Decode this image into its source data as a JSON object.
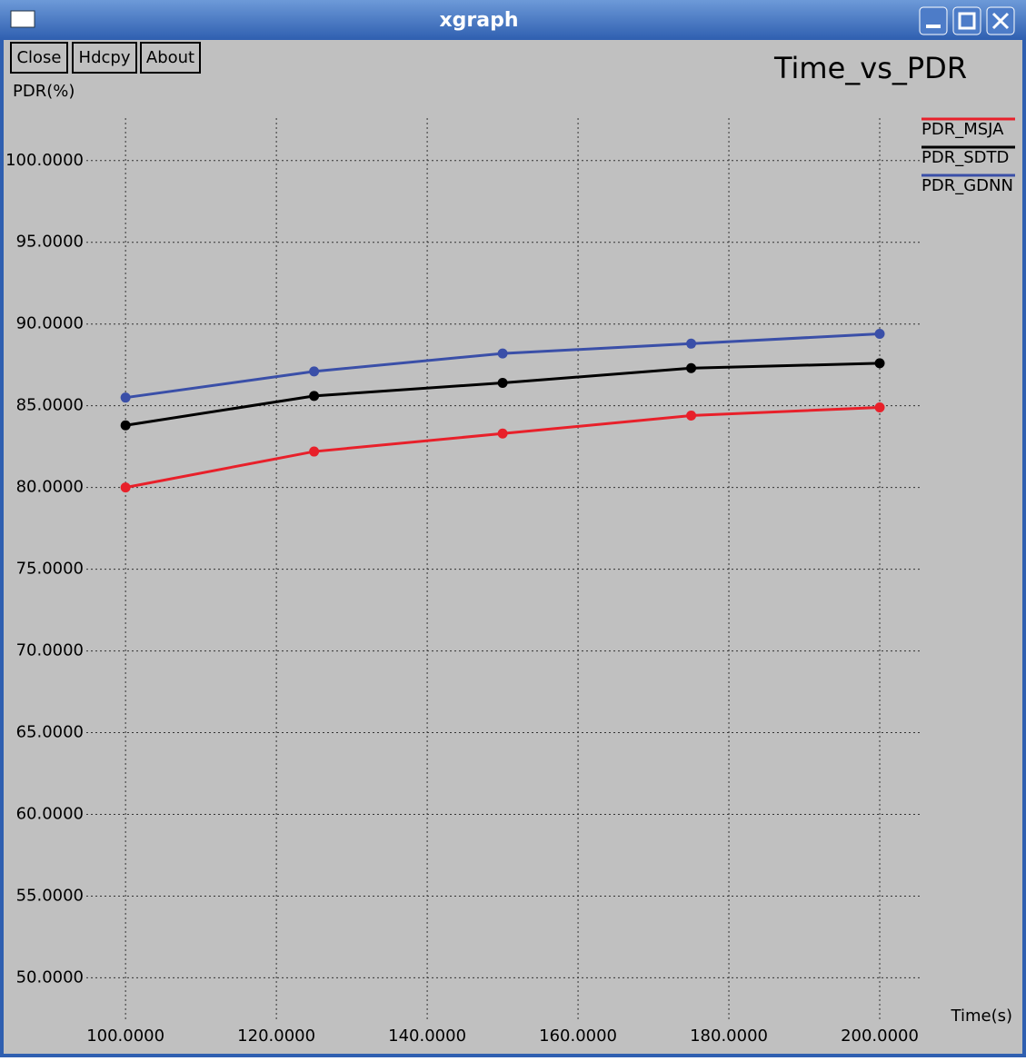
{
  "window": {
    "title": "xgraph",
    "buttons": [
      "Close",
      "Hdcpy",
      "About"
    ]
  },
  "chart_data": {
    "type": "line",
    "title": "Time_vs_PDR",
    "y_label": "PDR(%)",
    "x_label": "Time(s)",
    "x": [
      100,
      125,
      150,
      175,
      200
    ],
    "series": [
      {
        "name": "PDR_MSJA",
        "color": "#e8202a",
        "values": [
          80.0,
          82.2,
          83.3,
          84.4,
          84.9
        ]
      },
      {
        "name": "PDR_SDTD",
        "color": "#000000",
        "values": [
          83.8,
          85.6,
          86.4,
          87.3,
          87.6
        ]
      },
      {
        "name": "PDR_GDNN",
        "color": "#3a4fa8",
        "values": [
          85.5,
          87.1,
          88.2,
          88.8,
          89.4
        ]
      }
    ],
    "xlim": [
      94.8,
      205.3
    ],
    "ylim": [
      47.3,
      102.6
    ],
    "xticks": [
      {
        "value": 100,
        "label": "100.0000"
      },
      {
        "value": 120,
        "label": "120.0000"
      },
      {
        "value": 140,
        "label": "140.0000"
      },
      {
        "value": 160,
        "label": "160.0000"
      },
      {
        "value": 180,
        "label": "180.0000"
      },
      {
        "value": 200,
        "label": "200.0000"
      }
    ],
    "yticks": [
      {
        "value": 50,
        "label": "50.0000"
      },
      {
        "value": 55,
        "label": "55.0000"
      },
      {
        "value": 60,
        "label": "60.0000"
      },
      {
        "value": 65,
        "label": "65.0000"
      },
      {
        "value": 70,
        "label": "70.0000"
      },
      {
        "value": 75,
        "label": "75.0000"
      },
      {
        "value": 80,
        "label": "80.0000"
      },
      {
        "value": 85,
        "label": "85.0000"
      },
      {
        "value": 90,
        "label": "90.0000"
      },
      {
        "value": 95,
        "label": "95.0000"
      },
      {
        "value": 100,
        "label": "100.0000"
      }
    ],
    "grid": true,
    "legend": "right",
    "markers": true
  }
}
